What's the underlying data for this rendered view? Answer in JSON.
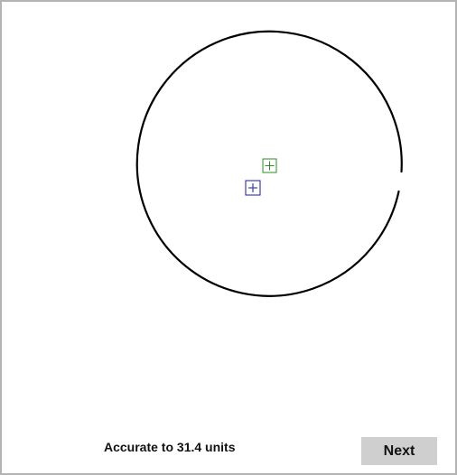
{
  "feedback": {
    "text": "Accurate to 31.4 units"
  },
  "next_button": {
    "label": "Next"
  },
  "colors": {
    "circle": "#000000",
    "true_center_marker": "#2e8b2e",
    "guess_center_marker": "#1a1aa6",
    "button_bg": "#cfcfcf",
    "frame_border": "#b3b3b3"
  }
}
